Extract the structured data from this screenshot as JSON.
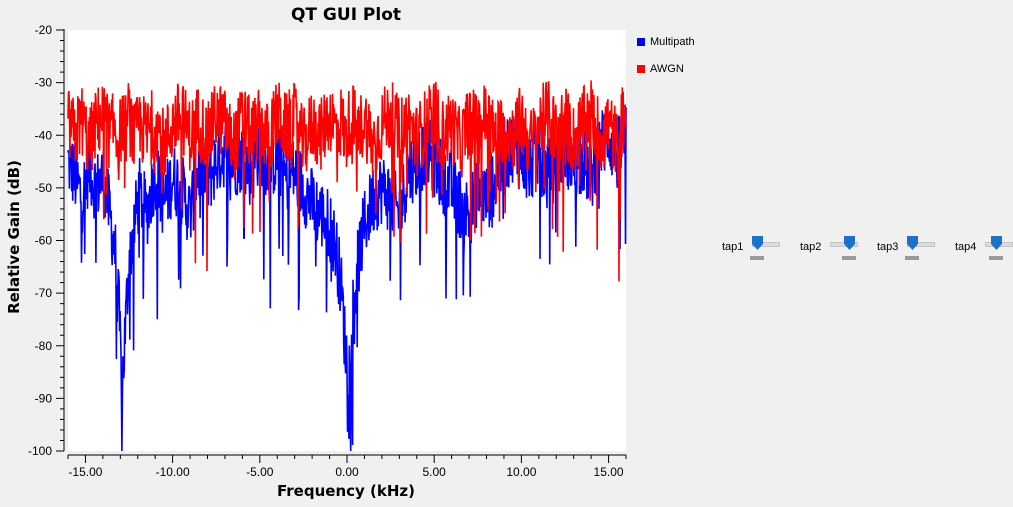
{
  "window": {
    "title": "QT GUI Plot"
  },
  "chart_data": {
    "type": "line",
    "title": "QT GUI Plot",
    "xlabel": "Frequency (kHz)",
    "ylabel": "Relative Gain (dB)",
    "xlim": [
      -16.0,
      16.0
    ],
    "ylim": [
      -100,
      -20
    ],
    "x_ticks": [
      -15,
      -10,
      -5,
      0,
      5,
      10,
      15
    ],
    "x_tick_labels": [
      "-15.00",
      "-10.00",
      "-5.00",
      "0.00",
      "5.00",
      "10.00",
      "15.00"
    ],
    "y_ticks": [
      -100,
      -90,
      -80,
      -70,
      -60,
      -50,
      -40,
      -30,
      -20
    ],
    "y_tick_labels": [
      "-100",
      "-90",
      "-80",
      "-70",
      "-60",
      "-50",
      "-40",
      "-30",
      "-20"
    ],
    "legend_position": "right",
    "grid": false,
    "series": [
      {
        "name": "Multipath",
        "color": "#0000ff",
        "points": [
          [
            -16.0,
            -45
          ],
          [
            -15.6,
            -48
          ],
          [
            -15.2,
            -52
          ],
          [
            -14.8,
            -46
          ],
          [
            -14.4,
            -50
          ],
          [
            -14.0,
            -48
          ],
          [
            -13.6,
            -55
          ],
          [
            -13.3,
            -62
          ],
          [
            -13.1,
            -72
          ],
          [
            -12.9,
            -88
          ],
          [
            -12.7,
            -76
          ],
          [
            -12.5,
            -64
          ],
          [
            -12.2,
            -57
          ],
          [
            -11.9,
            -51
          ],
          [
            -11.5,
            -55
          ],
          [
            -11.0,
            -47
          ],
          [
            -10.5,
            -53
          ],
          [
            -10.0,
            -48
          ],
          [
            -9.5,
            -50
          ],
          [
            -9.0,
            -55
          ],
          [
            -8.5,
            -46
          ],
          [
            -8.0,
            -49
          ],
          [
            -7.5,
            -45
          ],
          [
            -7.0,
            -43
          ],
          [
            -6.5,
            -45
          ],
          [
            -6.0,
            -44
          ],
          [
            -5.5,
            -47
          ],
          [
            -5.0,
            -42
          ],
          [
            -4.5,
            -46
          ],
          [
            -4.0,
            -44
          ],
          [
            -3.5,
            -48
          ],
          [
            -3.0,
            -47
          ],
          [
            -2.5,
            -50
          ],
          [
            -2.0,
            -53
          ],
          [
            -1.5,
            -55
          ],
          [
            -1.0,
            -57
          ],
          [
            -0.6,
            -62
          ],
          [
            -0.3,
            -70
          ],
          [
            -0.1,
            -80
          ],
          [
            0.1,
            -85
          ],
          [
            0.3,
            -74
          ],
          [
            0.6,
            -65
          ],
          [
            1.0,
            -57
          ],
          [
            1.5,
            -52
          ],
          [
            2.0,
            -50
          ],
          [
            2.5,
            -52
          ],
          [
            3.0,
            -55
          ],
          [
            3.5,
            -47
          ],
          [
            4.0,
            -45
          ],
          [
            4.5,
            -43
          ],
          [
            5.0,
            -45
          ],
          [
            5.5,
            -48
          ],
          [
            6.0,
            -50
          ],
          [
            6.5,
            -53
          ],
          [
            7.0,
            -55
          ],
          [
            7.5,
            -50
          ],
          [
            8.0,
            -52
          ],
          [
            8.5,
            -48
          ],
          [
            9.0,
            -45
          ],
          [
            9.5,
            -42
          ],
          [
            10.0,
            -44
          ],
          [
            10.5,
            -46
          ],
          [
            11.0,
            -43
          ],
          [
            11.5,
            -48
          ],
          [
            12.0,
            -45
          ],
          [
            12.5,
            -42
          ],
          [
            13.0,
            -46
          ],
          [
            13.5,
            -44
          ],
          [
            14.0,
            -48
          ],
          [
            14.5,
            -42
          ],
          [
            15.0,
            -40
          ],
          [
            15.5,
            -44
          ],
          [
            16.0,
            -40
          ]
        ]
      },
      {
        "name": "AWGN",
        "color": "#ff0000",
        "points": [
          [
            -16.0,
            -38
          ],
          [
            -15.6,
            -40
          ],
          [
            -15.2,
            -37
          ],
          [
            -14.8,
            -42
          ],
          [
            -14.4,
            -38
          ],
          [
            -14.0,
            -36
          ],
          [
            -13.6,
            -40
          ],
          [
            -13.3,
            -38
          ],
          [
            -13.1,
            -42
          ],
          [
            -12.9,
            -37
          ],
          [
            -12.7,
            -39
          ],
          [
            -12.5,
            -36
          ],
          [
            -12.2,
            -41
          ],
          [
            -11.9,
            -38
          ],
          [
            -11.5,
            -40
          ],
          [
            -11.0,
            -37
          ],
          [
            -10.5,
            -42
          ],
          [
            -10.0,
            -38
          ],
          [
            -9.5,
            -36
          ],
          [
            -9.0,
            -40
          ],
          [
            -8.5,
            -37
          ],
          [
            -8.0,
            -41
          ],
          [
            -7.5,
            -36
          ],
          [
            -7.0,
            -38
          ],
          [
            -6.5,
            -42
          ],
          [
            -6.0,
            -37
          ],
          [
            -5.5,
            -40
          ],
          [
            -5.0,
            -38
          ],
          [
            -4.5,
            -41
          ],
          [
            -4.0,
            -36
          ],
          [
            -3.5,
            -39
          ],
          [
            -3.0,
            -37
          ],
          [
            -2.5,
            -42
          ],
          [
            -2.0,
            -38
          ],
          [
            -1.5,
            -40
          ],
          [
            -1.0,
            -36
          ],
          [
            -0.6,
            -39
          ],
          [
            -0.3,
            -37
          ],
          [
            -0.1,
            -41
          ],
          [
            0.1,
            -38
          ],
          [
            0.3,
            -36
          ],
          [
            0.6,
            -40
          ],
          [
            1.0,
            -37
          ],
          [
            1.5,
            -42
          ],
          [
            2.0,
            -38
          ],
          [
            2.5,
            -36
          ],
          [
            3.0,
            -40
          ],
          [
            3.5,
            -37
          ],
          [
            4.0,
            -41
          ],
          [
            4.5,
            -38
          ],
          [
            5.0,
            -36
          ],
          [
            5.5,
            -40
          ],
          [
            6.0,
            -38
          ],
          [
            6.5,
            -42
          ],
          [
            7.0,
            -37
          ],
          [
            7.5,
            -39
          ],
          [
            8.0,
            -36
          ],
          [
            8.5,
            -41
          ],
          [
            9.0,
            -38
          ],
          [
            9.5,
            -40
          ],
          [
            10.0,
            -37
          ],
          [
            10.5,
            -42
          ],
          [
            11.0,
            -38
          ],
          [
            11.5,
            -36
          ],
          [
            12.0,
            -40
          ],
          [
            12.5,
            -37
          ],
          [
            13.0,
            -41
          ],
          [
            13.5,
            -38
          ],
          [
            14.0,
            -36
          ],
          [
            14.5,
            -40
          ],
          [
            15.0,
            -38
          ],
          [
            15.5,
            -42
          ],
          [
            16.0,
            -34
          ]
        ]
      }
    ]
  },
  "legend": {
    "items": [
      {
        "label": "Multipath",
        "color": "#0000ff"
      },
      {
        "label": "AWGN",
        "color": "#ff0000"
      }
    ]
  },
  "sliders": [
    {
      "label": "tap1",
      "position": 0.0
    },
    {
      "label": "tap2",
      "position": 0.7
    },
    {
      "label": "tap3",
      "position": 0.0
    },
    {
      "label": "tap4",
      "position": 0.3
    }
  ],
  "colors": {
    "accent": "#1a73c8",
    "background": "#f0f0f0"
  }
}
